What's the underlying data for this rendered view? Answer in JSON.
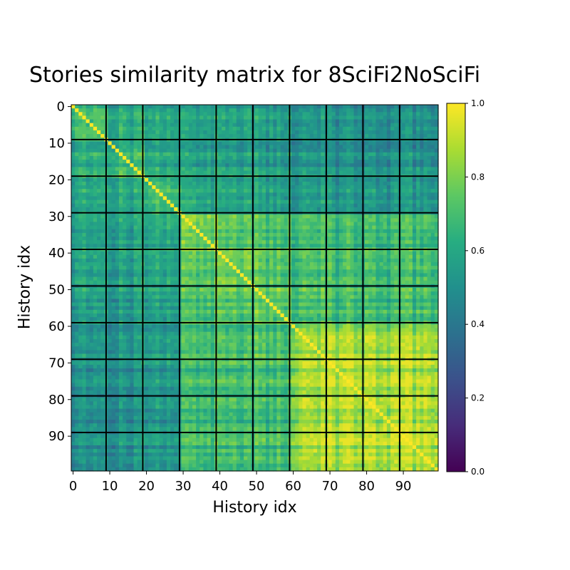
{
  "chart_data": {
    "type": "heatmap",
    "title": "Stories similarity matrix for 8SciFi2NoSciFi",
    "xlabel": "History idx",
    "ylabel": "History idx",
    "size": 100,
    "group_size": 10,
    "x_ticks": [
      0,
      10,
      20,
      30,
      40,
      50,
      60,
      70,
      80,
      90
    ],
    "y_ticks": [
      0,
      10,
      20,
      30,
      40,
      50,
      60,
      70,
      80,
      90
    ],
    "clim": [
      0.0,
      1.0
    ],
    "colorbar_ticks": [
      "0.0",
      "0.2",
      "0.4",
      "0.6",
      "0.8",
      "1.0"
    ],
    "colormap": "viridis",
    "diagonal_value": 1.0,
    "group_means": [
      [
        0.66,
        0.6,
        0.58,
        0.56,
        0.55,
        0.54,
        0.5,
        0.48,
        0.48,
        0.47
      ],
      [
        0.6,
        0.68,
        0.61,
        0.57,
        0.56,
        0.55,
        0.52,
        0.5,
        0.5,
        0.5
      ],
      [
        0.58,
        0.61,
        0.68,
        0.6,
        0.58,
        0.57,
        0.55,
        0.53,
        0.53,
        0.53
      ],
      [
        0.56,
        0.57,
        0.6,
        0.78,
        0.72,
        0.7,
        0.68,
        0.67,
        0.67,
        0.67
      ],
      [
        0.55,
        0.56,
        0.58,
        0.72,
        0.75,
        0.72,
        0.68,
        0.67,
        0.67,
        0.67
      ],
      [
        0.54,
        0.55,
        0.57,
        0.7,
        0.72,
        0.74,
        0.7,
        0.68,
        0.68,
        0.68
      ],
      [
        0.5,
        0.52,
        0.55,
        0.68,
        0.68,
        0.7,
        0.84,
        0.85,
        0.85,
        0.85
      ],
      [
        0.48,
        0.5,
        0.53,
        0.67,
        0.67,
        0.68,
        0.85,
        0.88,
        0.87,
        0.87
      ],
      [
        0.48,
        0.5,
        0.53,
        0.67,
        0.67,
        0.68,
        0.85,
        0.87,
        0.88,
        0.87
      ],
      [
        0.47,
        0.5,
        0.53,
        0.67,
        0.67,
        0.68,
        0.85,
        0.87,
        0.87,
        0.88
      ]
    ],
    "grid_lines_at": [
      10,
      20,
      30,
      40,
      50,
      60,
      70,
      80,
      90
    ],
    "grid_line_color": "#000000"
  }
}
